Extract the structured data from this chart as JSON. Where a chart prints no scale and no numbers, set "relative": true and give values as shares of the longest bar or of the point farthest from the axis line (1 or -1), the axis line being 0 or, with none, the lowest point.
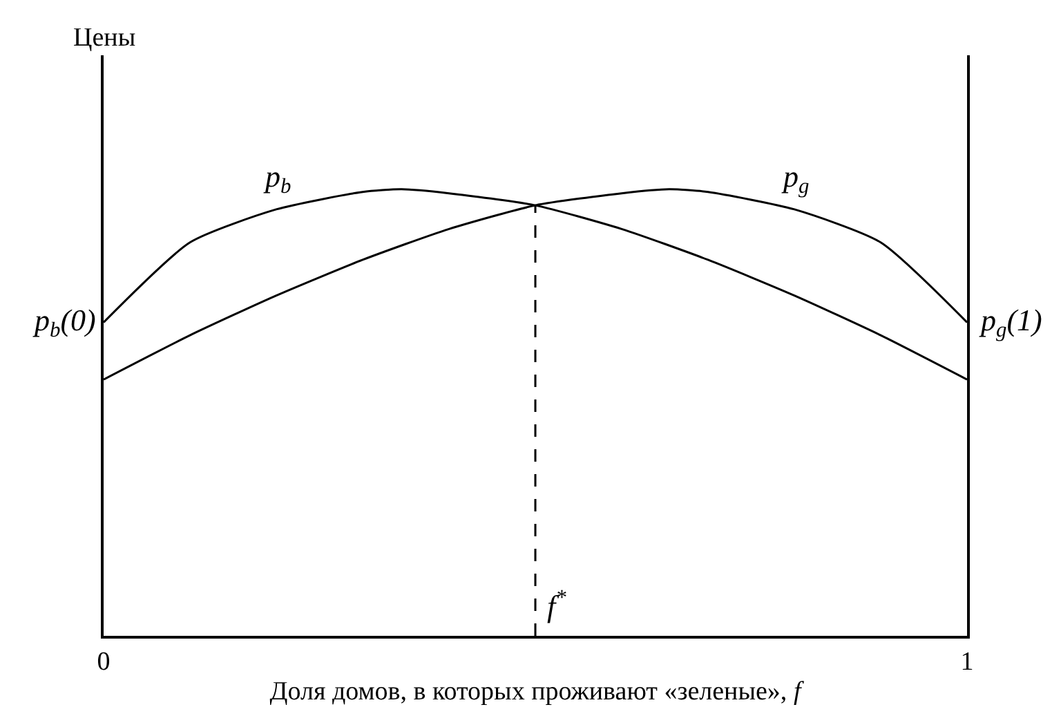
{
  "chart_data": {
    "type": "line",
    "relative": true,
    "xlabel": "Доля домов, в которых проживают «зеленые», f",
    "xlim": [
      0,
      1
    ],
    "xticks": [
      0,
      1
    ],
    "legend": false,
    "marker": "none",
    "series": [
      {
        "name": "p$_{b}$",
        "color": "#000000",
        "x": [
          0,
          0.1,
          0.2,
          0.3,
          0.345,
          0.4,
          0.5,
          0.6,
          0.7,
          0.8,
          0.9,
          1
        ],
        "values": [
          0.702,
          0.881,
          0.955,
          0.994,
          1,
          0.991,
          0.964,
          0.911,
          0.842,
          0.762,
          0.673,
          0.574
        ]
      },
      {
        "name": "p$_{g}$",
        "color": "#000000",
        "x": [
          0,
          0.1,
          0.2,
          0.3,
          0.4,
          0.5,
          0.6,
          0.655,
          0.7,
          0.8,
          0.9,
          1
        ],
        "values": [
          0.574,
          0.673,
          0.762,
          0.842,
          0.911,
          0.964,
          0.991,
          1,
          0.994,
          0.955,
          0.881,
          0.702
        ]
      },
      {
        "color": "#000000",
        "line_style": "dashed",
        "x": [
          0.5,
          0.5
        ],
        "values": [
          0,
          0.964
        ]
      }
    ],
    "annotations": [
      "Цены",
      {
        "text": "p$_{b}$(0)",
        "x": 0,
        "y": 0.702
      },
      {
        "text": "p$_{g}$(1)",
        "x": 1,
        "y": 0.702
      },
      {
        "text": "f$^{*}$",
        "x": 0.5,
        "y": 0.07
      }
    ]
  }
}
